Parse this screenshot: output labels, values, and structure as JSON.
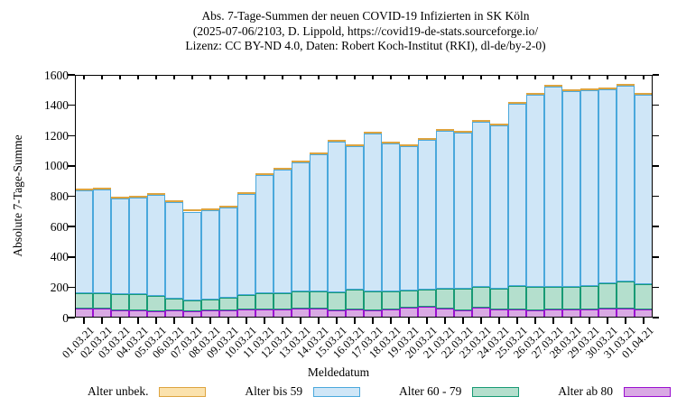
{
  "title": {
    "line1": "Abs. 7-Tage-Summen der neuen COVID-19 Infizierten in SK Köln",
    "line2": "(2025-07-06/2103, D. Lippold, https://covid19-de-stats.sourceforge.io/",
    "line3": "Lizenz: CC BY-ND 4.0, Daten: Robert Koch-Institut (RKI), dl-de/by-2-0)"
  },
  "chart_data": {
    "type": "bar",
    "stacked": true,
    "title": "Abs. 7-Tage-Summen der neuen COVID-19 Infizierten in SK Köln (2025-07-06/2103, D. Lippold, https://covid19-de-stats.sourceforge.io/ Lizenz: CC BY-ND 4.0, Daten: Robert Koch-Institut (RKI), dl-de/by-2-0)",
    "xlabel": "Meldedatum",
    "ylabel": "Absolute 7-Tage-Summe",
    "ylim": [
      0,
      1600
    ],
    "ytick_step": 200,
    "grid": false,
    "legend_position": "bottom",
    "categories": [
      "01.03.21",
      "02.03.21",
      "03.03.21",
      "04.03.21",
      "05.03.21",
      "06.03.21",
      "07.03.21",
      "08.03.21",
      "09.03.21",
      "10.03.21",
      "11.03.21",
      "12.03.21",
      "13.03.21",
      "14.03.21",
      "15.03.21",
      "16.03.21",
      "17.03.21",
      "18.03.21",
      "19.03.21",
      "20.03.21",
      "21.03.21",
      "22.03.21",
      "23.03.21",
      "24.03.21",
      "25.03.21",
      "26.03.21",
      "27.03.21",
      "28.03.21",
      "29.03.21",
      "30.03.21",
      "31.03.21",
      "01.04.21"
    ],
    "series": [
      {
        "key": "ab80",
        "name": "Alter ab 80",
        "fill": "#d9a9e4",
        "border": "#9a10d0",
        "values": [
          58,
          58,
          49,
          49,
          44,
          49,
          43,
          49,
          49,
          53,
          53,
          53,
          58,
          58,
          45,
          53,
          49,
          53,
          65,
          70,
          58,
          46,
          65,
          53,
          53,
          46,
          53,
          53,
          53,
          59,
          59,
          53
        ]
      },
      {
        "key": "a60-79",
        "name": "Alter 60 - 79",
        "fill": "#b4dfcd",
        "border": "#189a74",
        "values": [
          102,
          102,
          104,
          104,
          97,
          78,
          72,
          72,
          82,
          94,
          109,
          109,
          113,
          116,
          121,
          131,
          123,
          122,
          115,
          115,
          130,
          142,
          135,
          135,
          155,
          154,
          147,
          152,
          157,
          169,
          181,
          167
        ]
      },
      {
        "key": "bis59",
        "name": "Alter bis 59",
        "fill": "#cfe6f7",
        "border": "#4aa8dc",
        "values": [
          677,
          682,
          634,
          639,
          666,
          637,
          584,
          588,
          596,
          670,
          780,
          812,
          853,
          905,
          991,
          949,
          1044,
          973,
          951,
          988,
          1044,
          1034,
          1092,
          1079,
          1199,
          1267,
          1322,
          1287,
          1287,
          1279,
          1287,
          1247
        ]
      },
      {
        "key": "unbek",
        "name": "Alter unbek.",
        "fill": "#fbe2ad",
        "border": "#dda440",
        "values": [
          3,
          3,
          3,
          3,
          3,
          3,
          3,
          3,
          3,
          3,
          3,
          3,
          3,
          3,
          3,
          3,
          3,
          3,
          3,
          3,
          3,
          3,
          3,
          3,
          3,
          3,
          3,
          3,
          3,
          3,
          3,
          3
        ]
      }
    ],
    "totals": [
      840,
      845,
      790,
      795,
      810,
      767,
      702,
      712,
      730,
      820,
      945,
      977,
      1027,
      1082,
      1160,
      1136,
      1219,
      1151,
      1134,
      1176,
      1235,
      1225,
      1295,
      1270,
      1410,
      1470,
      1525,
      1495,
      1500,
      1510,
      1530,
      1470
    ],
    "legend_order": [
      "unbek",
      "bis59",
      "a60-79",
      "ab80"
    ]
  },
  "colors": {
    "axis": "#000000",
    "background": "#ffffff"
  }
}
